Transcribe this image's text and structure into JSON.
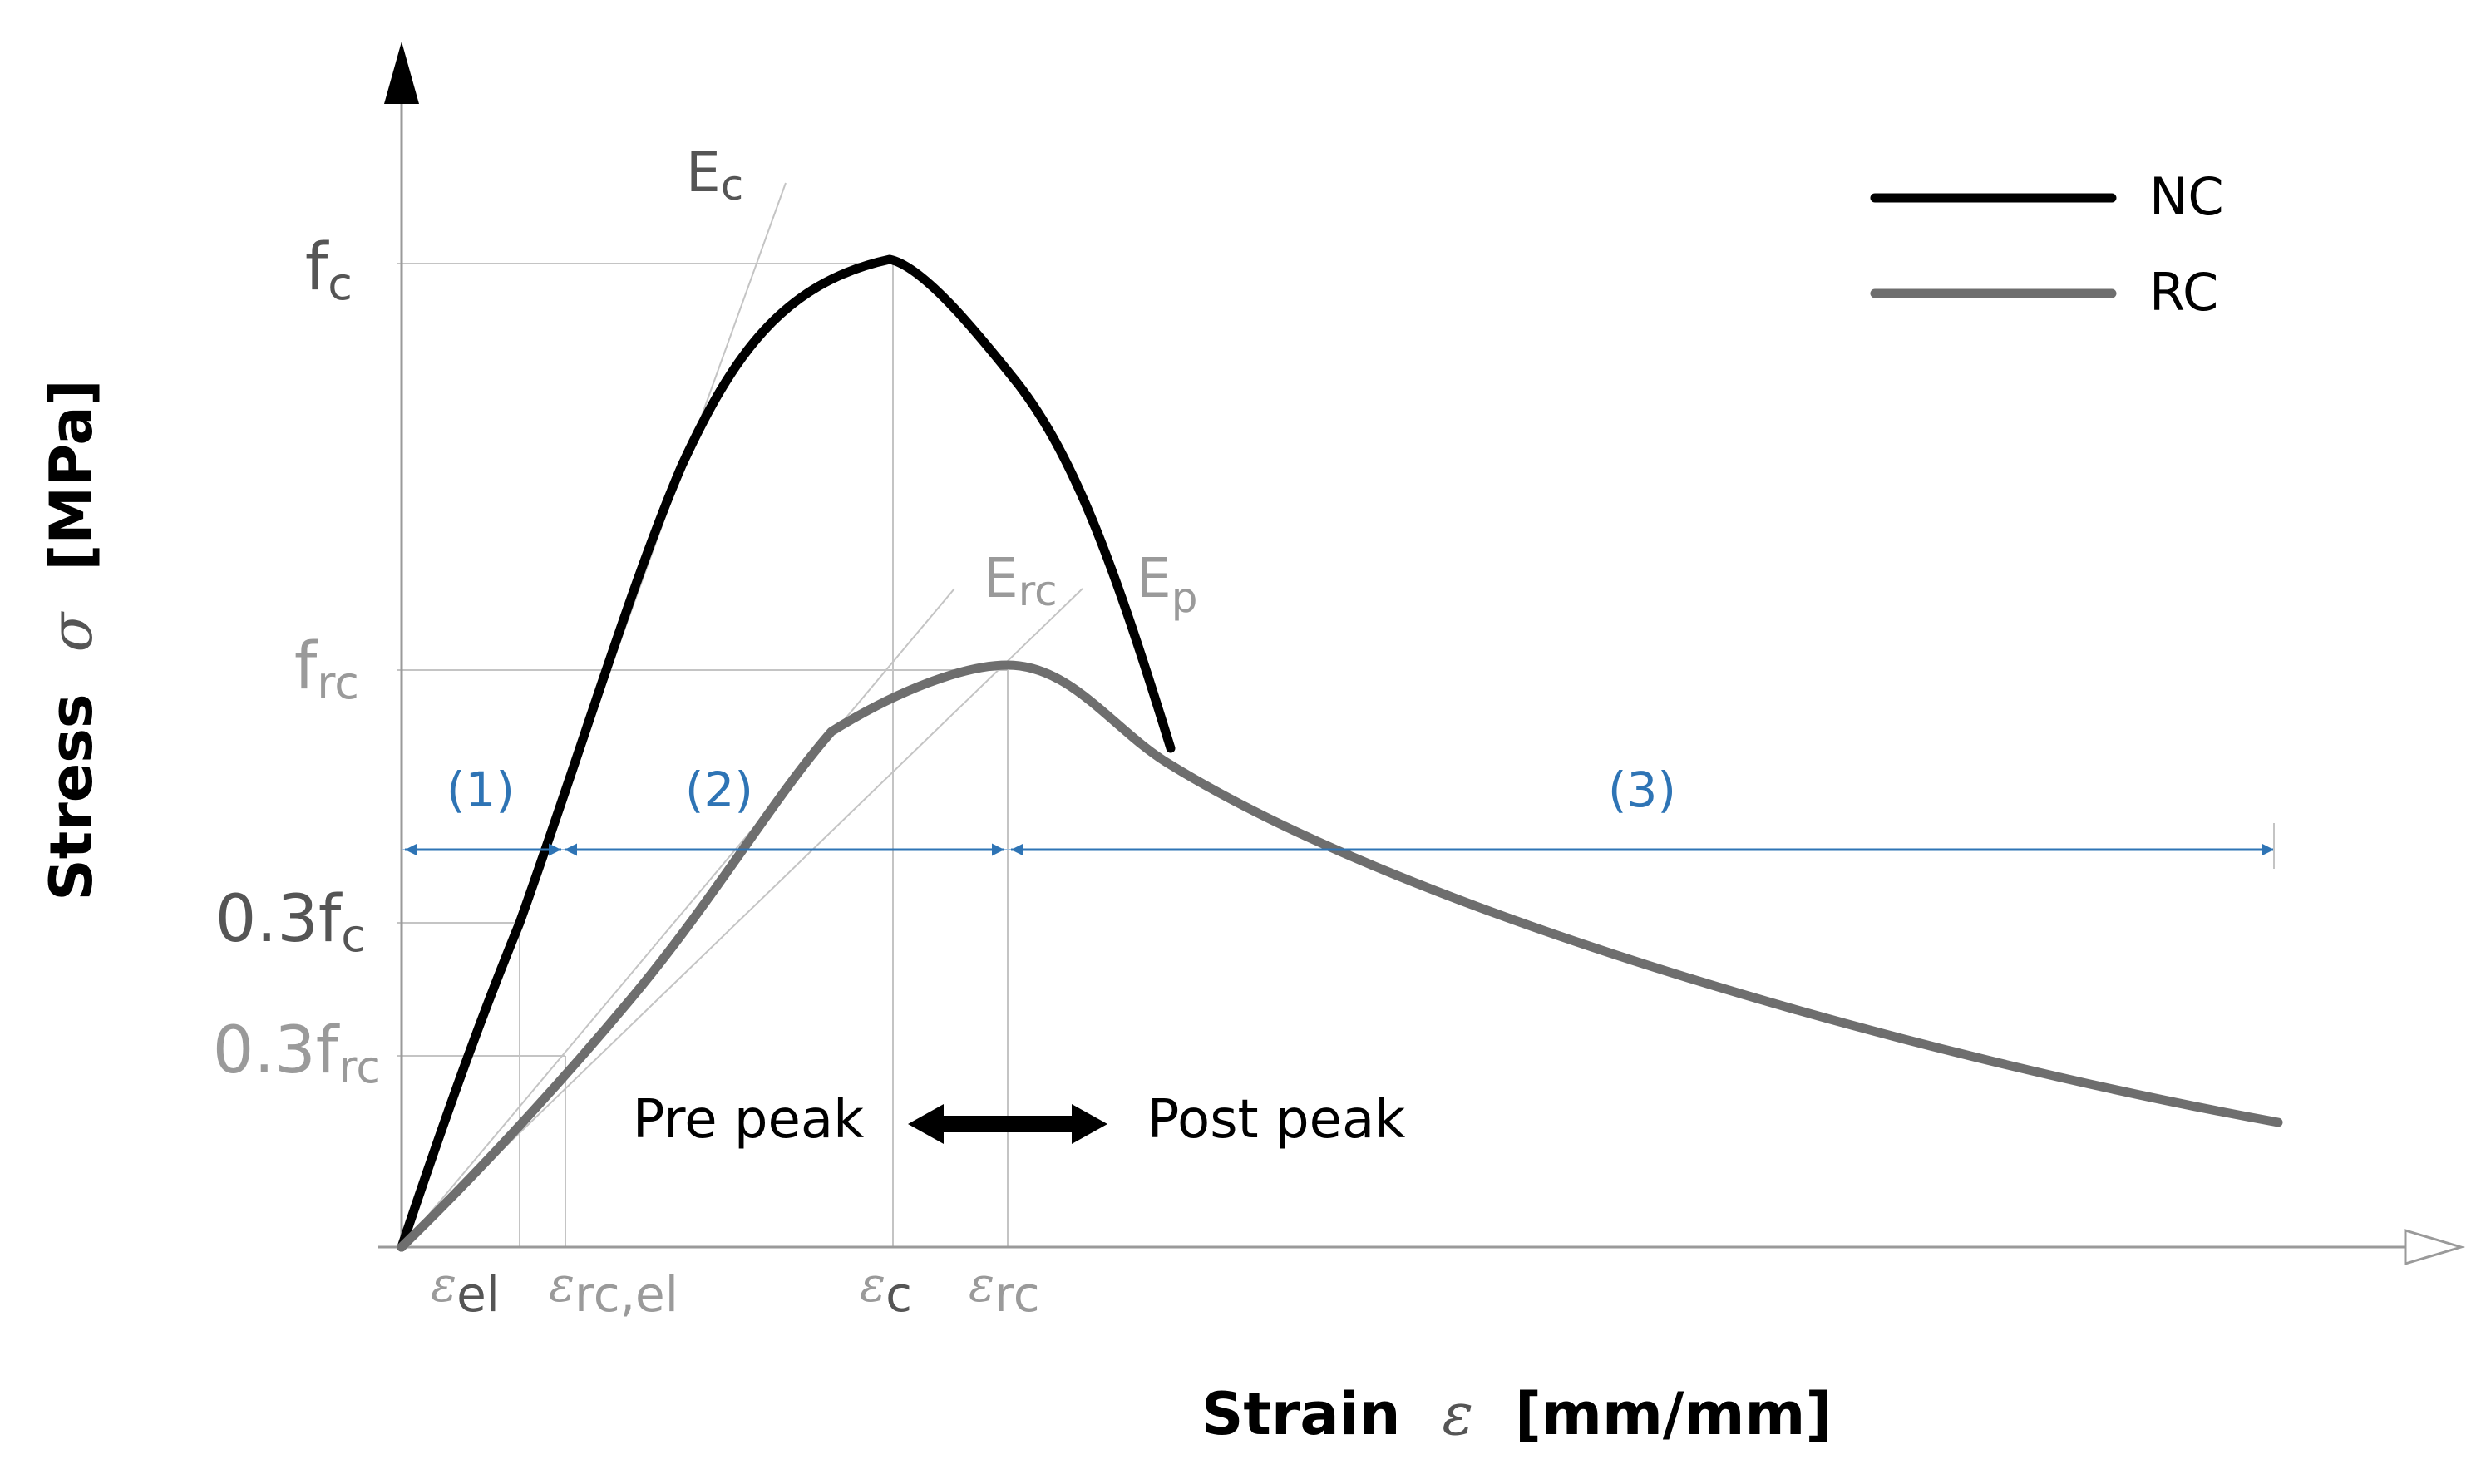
{
  "axes": {
    "y_label_bold": "Stress",
    "y_symbol": "σ",
    "y_unit": "[MPa]",
    "x_label_bold": "Strain",
    "x_symbol": "ε",
    "x_unit": "[mm/mm]"
  },
  "legend": [
    {
      "label": "NC",
      "color": "#000000"
    },
    {
      "label": "RC",
      "color": "#6e6e6e"
    }
  ],
  "y_marks": {
    "fc": {
      "base": "f",
      "sub": "c"
    },
    "frc": {
      "base": "f",
      "sub": "rc"
    },
    "fc03": {
      "base": "0.3f",
      "sub": "c"
    },
    "frc03": {
      "base": "0.3f",
      "sub": "rc"
    }
  },
  "x_marks": {
    "eps_el": {
      "sym": "ε",
      "sub": "el"
    },
    "eps_rcel": {
      "sym": "ε",
      "sub": "rc,el"
    },
    "eps_c": {
      "sym": "ε",
      "sub": "c"
    },
    "eps_rc": {
      "sym": "ε",
      "sub": "rc"
    }
  },
  "moduli": {
    "Ec": {
      "base": "E",
      "sub": "c"
    },
    "Erc": {
      "base": "E",
      "sub": "rc"
    },
    "Ep": {
      "base": "E",
      "sub": "p"
    }
  },
  "stages": [
    "(1)",
    "(2)",
    "(3)"
  ],
  "phase": {
    "pre": "Pre peak",
    "post": "Post peak"
  },
  "colors": {
    "nc": "#000000",
    "rc": "#6e6e6e",
    "stage_blue": "#2e74b5",
    "guide": "#c4c4c4",
    "mark_gray": "#9a9a9a"
  }
}
